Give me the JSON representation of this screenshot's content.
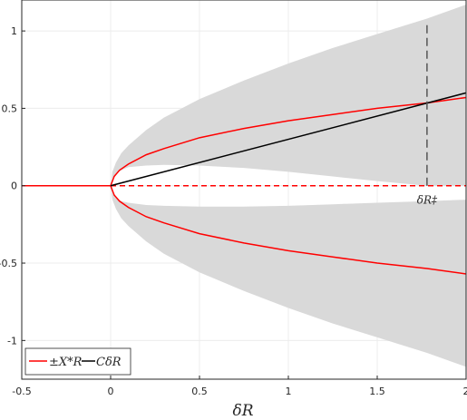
{
  "chart_data": {
    "type": "line",
    "xlabel": "δR",
    "ylabel": "",
    "xlim": [
      -0.5,
      2
    ],
    "ylim": [
      -1.25,
      1.2
    ],
    "xticks": [
      -0.5,
      0,
      0.5,
      1,
      1.5,
      2
    ],
    "xtick_labels": [
      "-0.5",
      "0",
      "0.5",
      "1",
      "1.5",
      "2"
    ],
    "yticks": [
      -1,
      -0.5,
      0,
      0.5,
      1
    ],
    "ytick_labels": [
      "-1",
      "-0.5",
      "0",
      "0.5",
      "1"
    ],
    "grid": true,
    "legend_position": "bottom-left",
    "colors": {
      "red": "#ff0000",
      "black": "#000000",
      "band": "#d9d9d9",
      "dashed_gray": "#555555"
    },
    "series": [
      {
        "name": "±X_R*",
        "color": "#ff0000",
        "style": "solid",
        "x": [
          -0.5,
          0,
          0.02,
          0.05,
          0.1,
          0.2,
          0.3,
          0.5,
          0.75,
          1.0,
          1.25,
          1.5,
          1.78,
          2.0
        ],
        "upper": [
          0,
          0,
          0.06,
          0.1,
          0.14,
          0.2,
          0.24,
          0.31,
          0.37,
          0.42,
          0.46,
          0.5,
          0.535,
          0.57
        ],
        "lower": [
          0,
          0,
          -0.06,
          -0.1,
          -0.14,
          -0.2,
          -0.24,
          -0.31,
          -0.37,
          -0.42,
          -0.46,
          -0.5,
          -0.535,
          -0.57
        ]
      },
      {
        "name": "CδR",
        "color": "#000000",
        "style": "solid",
        "x": [
          0,
          2
        ],
        "y": [
          0,
          0.6
        ]
      }
    ],
    "dashed_zero_line": {
      "color": "#ff0000",
      "x": [
        0,
        2
      ],
      "y": [
        0,
        0
      ]
    },
    "shaded_region": {
      "x": [
        0,
        0.01,
        0.03,
        0.06,
        0.1,
        0.2,
        0.3,
        0.5,
        0.75,
        1.0,
        1.25,
        1.5,
        1.78,
        2.0
      ],
      "outer_upper": [
        0,
        0.09,
        0.15,
        0.21,
        0.26,
        0.36,
        0.44,
        0.56,
        0.68,
        0.79,
        0.89,
        0.98,
        1.08,
        1.17
      ],
      "outer_lower": [
        0,
        -0.09,
        -0.15,
        -0.21,
        -0.26,
        -0.36,
        -0.44,
        -0.56,
        -0.68,
        -0.79,
        -0.89,
        -0.98,
        -1.08,
        -1.17
      ],
      "inner_upper": [
        0,
        0.05,
        0.08,
        0.1,
        0.12,
        0.13,
        0.135,
        0.13,
        0.115,
        0.09,
        0.06,
        0.03,
        0,
        0
      ],
      "inner_lower": [
        0,
        -0.05,
        -0.08,
        -0.1,
        -0.11,
        -0.125,
        -0.13,
        -0.135,
        -0.135,
        -0.13,
        -0.12,
        -0.11,
        -0.1,
        -0.09
      ]
    },
    "annotation": {
      "label": "δR‡",
      "x": 1.78,
      "dashed_vertical": {
        "x": 1.78,
        "y": [
          0,
          1.05
        ]
      }
    },
    "legend": [
      {
        "label": "±X*R",
        "color": "#ff0000"
      },
      {
        "label": "CδR",
        "color": "#000000"
      }
    ]
  }
}
